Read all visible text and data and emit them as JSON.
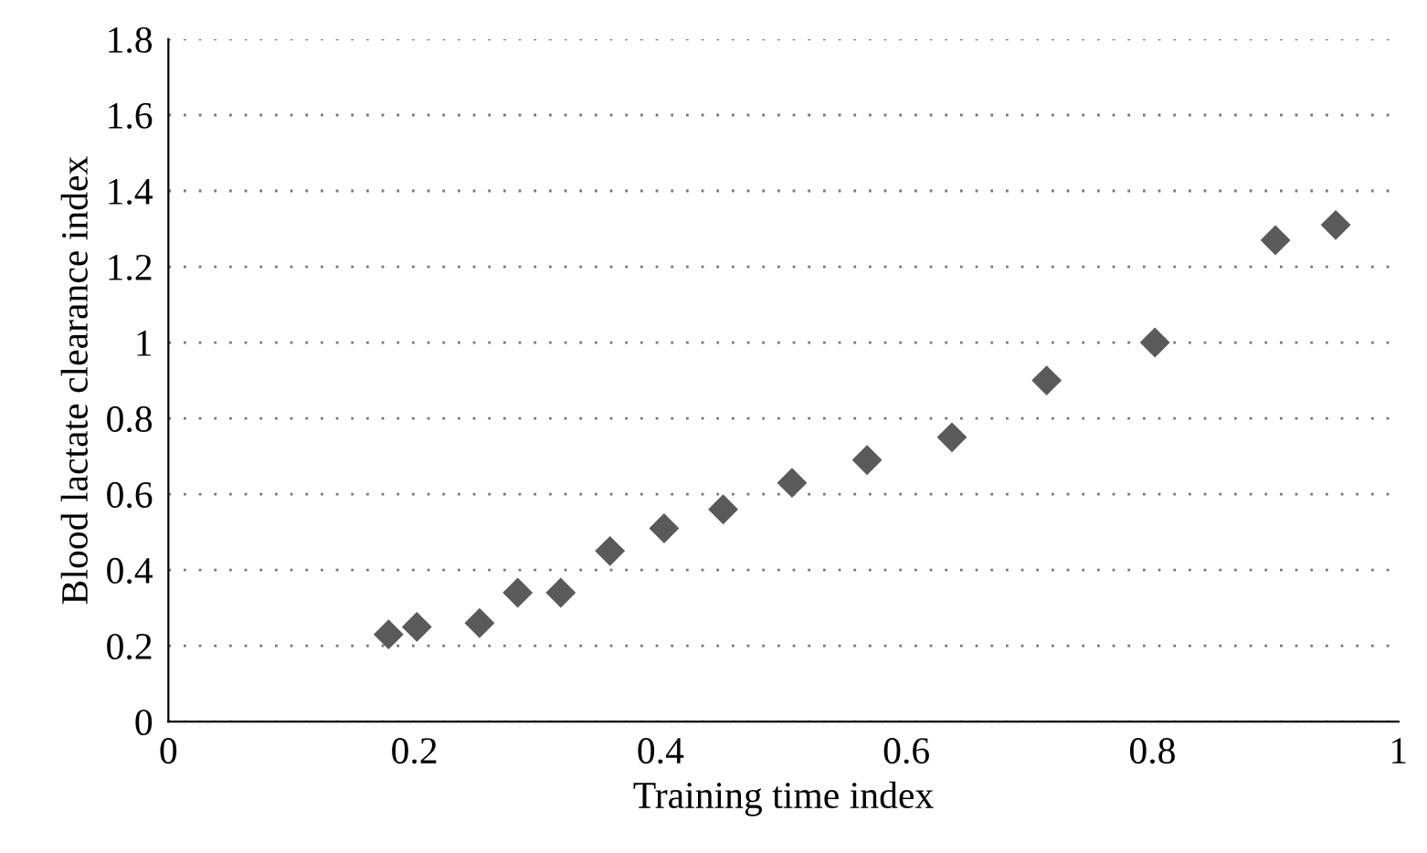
{
  "chart_data": {
    "type": "scatter",
    "xlabel": "Training time index",
    "ylabel": "Blood lactate clearance index",
    "x": [
      0.179,
      0.202,
      0.253,
      0.284,
      0.319,
      0.359,
      0.403,
      0.451,
      0.507,
      0.568,
      0.637,
      0.714,
      0.802,
      0.9,
      0.949
    ],
    "series": [
      {
        "color": "#5a5a5a",
        "values": [
          0.23,
          0.25,
          0.26,
          0.34,
          0.34,
          0.45,
          0.51,
          0.56,
          0.63,
          0.69,
          0.75,
          0.9,
          1.0,
          1.27,
          1.31
        ]
      }
    ],
    "xlim": [
      0,
      1
    ],
    "xticks": [
      0,
      0.2,
      0.4,
      0.6,
      0.8,
      1
    ],
    "ylim": [
      0,
      1.8
    ],
    "yticks": [
      0,
      0.2,
      0.4,
      0.6,
      0.8,
      1,
      1.2,
      1.4,
      1.6,
      1.8
    ],
    "grid": "y",
    "marker": "diamond"
  }
}
